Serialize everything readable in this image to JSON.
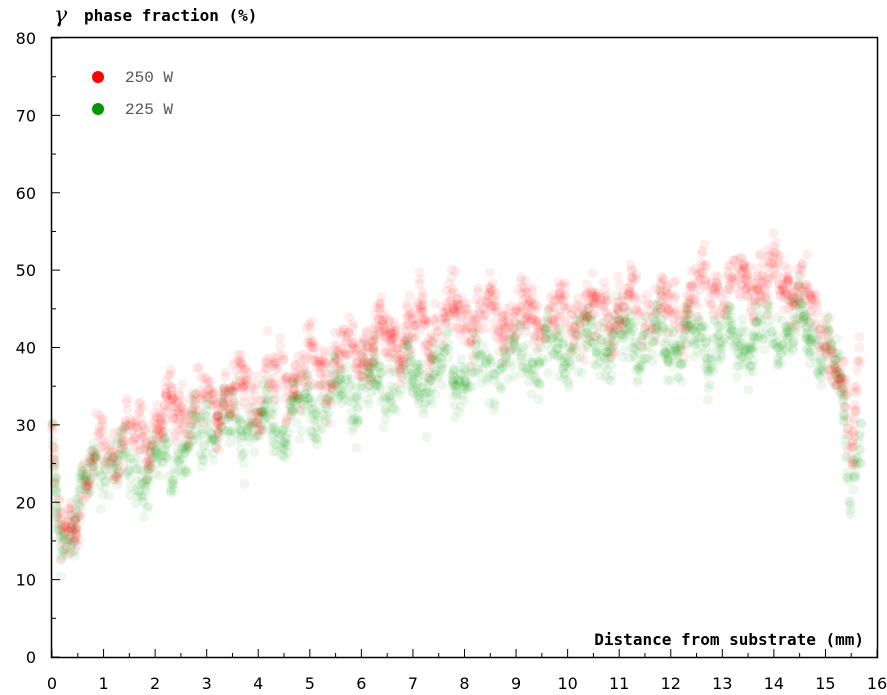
{
  "chart_data": {
    "type": "scatter",
    "title": "",
    "ylabel_symbol": "γ",
    "ylabel_text": "phase fraction (%)",
    "xlabel": "Distance from substrate (mm)",
    "xlim": [
      0,
      16
    ],
    "ylim": [
      0,
      80
    ],
    "xticks": [
      0,
      1,
      2,
      3,
      4,
      5,
      6,
      7,
      8,
      9,
      10,
      11,
      12,
      13,
      14,
      15,
      16
    ],
    "yticks": [
      0,
      10,
      20,
      30,
      40,
      50,
      60,
      70,
      80
    ],
    "legend_position": "top-left",
    "grid": false,
    "series": [
      {
        "name": "250 W",
        "color": "#ff0000",
        "trend": [
          [
            0.0,
            30
          ],
          [
            0.1,
            17
          ],
          [
            0.3,
            15
          ],
          [
            0.5,
            21
          ],
          [
            1.0,
            27
          ],
          [
            1.5,
            28
          ],
          [
            2.0,
            30
          ],
          [
            2.5,
            32
          ],
          [
            3.0,
            33
          ],
          [
            3.5,
            34
          ],
          [
            4.0,
            35
          ],
          [
            5.0,
            37
          ],
          [
            6.0,
            40
          ],
          [
            7.0,
            42
          ],
          [
            8.0,
            44
          ],
          [
            9.0,
            44
          ],
          [
            10.0,
            44
          ],
          [
            11.0,
            45
          ],
          [
            12.0,
            45
          ],
          [
            13.0,
            48
          ],
          [
            13.5,
            49
          ],
          [
            14.0,
            49
          ],
          [
            14.5,
            48
          ],
          [
            15.0,
            42
          ],
          [
            15.3,
            35
          ],
          [
            15.5,
            26
          ],
          [
            15.7,
            45
          ]
        ]
      },
      {
        "name": "225 W",
        "color": "#009900",
        "trend": [
          [
            0.0,
            27
          ],
          [
            0.1,
            17
          ],
          [
            0.3,
            15
          ],
          [
            0.5,
            20
          ],
          [
            1.0,
            26
          ],
          [
            1.5,
            24
          ],
          [
            2.0,
            25
          ],
          [
            2.5,
            26
          ],
          [
            3.0,
            30
          ],
          [
            3.5,
            30
          ],
          [
            4.0,
            30
          ],
          [
            5.0,
            32
          ],
          [
            6.0,
            35
          ],
          [
            7.0,
            36
          ],
          [
            8.0,
            37
          ],
          [
            9.0,
            38
          ],
          [
            10.0,
            40
          ],
          [
            11.0,
            41
          ],
          [
            12.0,
            41
          ],
          [
            13.0,
            41
          ],
          [
            13.5,
            41
          ],
          [
            14.0,
            42
          ],
          [
            14.5,
            43
          ],
          [
            15.0,
            40
          ],
          [
            15.3,
            35
          ],
          [
            15.5,
            22
          ],
          [
            15.7,
            30
          ]
        ]
      }
    ]
  }
}
